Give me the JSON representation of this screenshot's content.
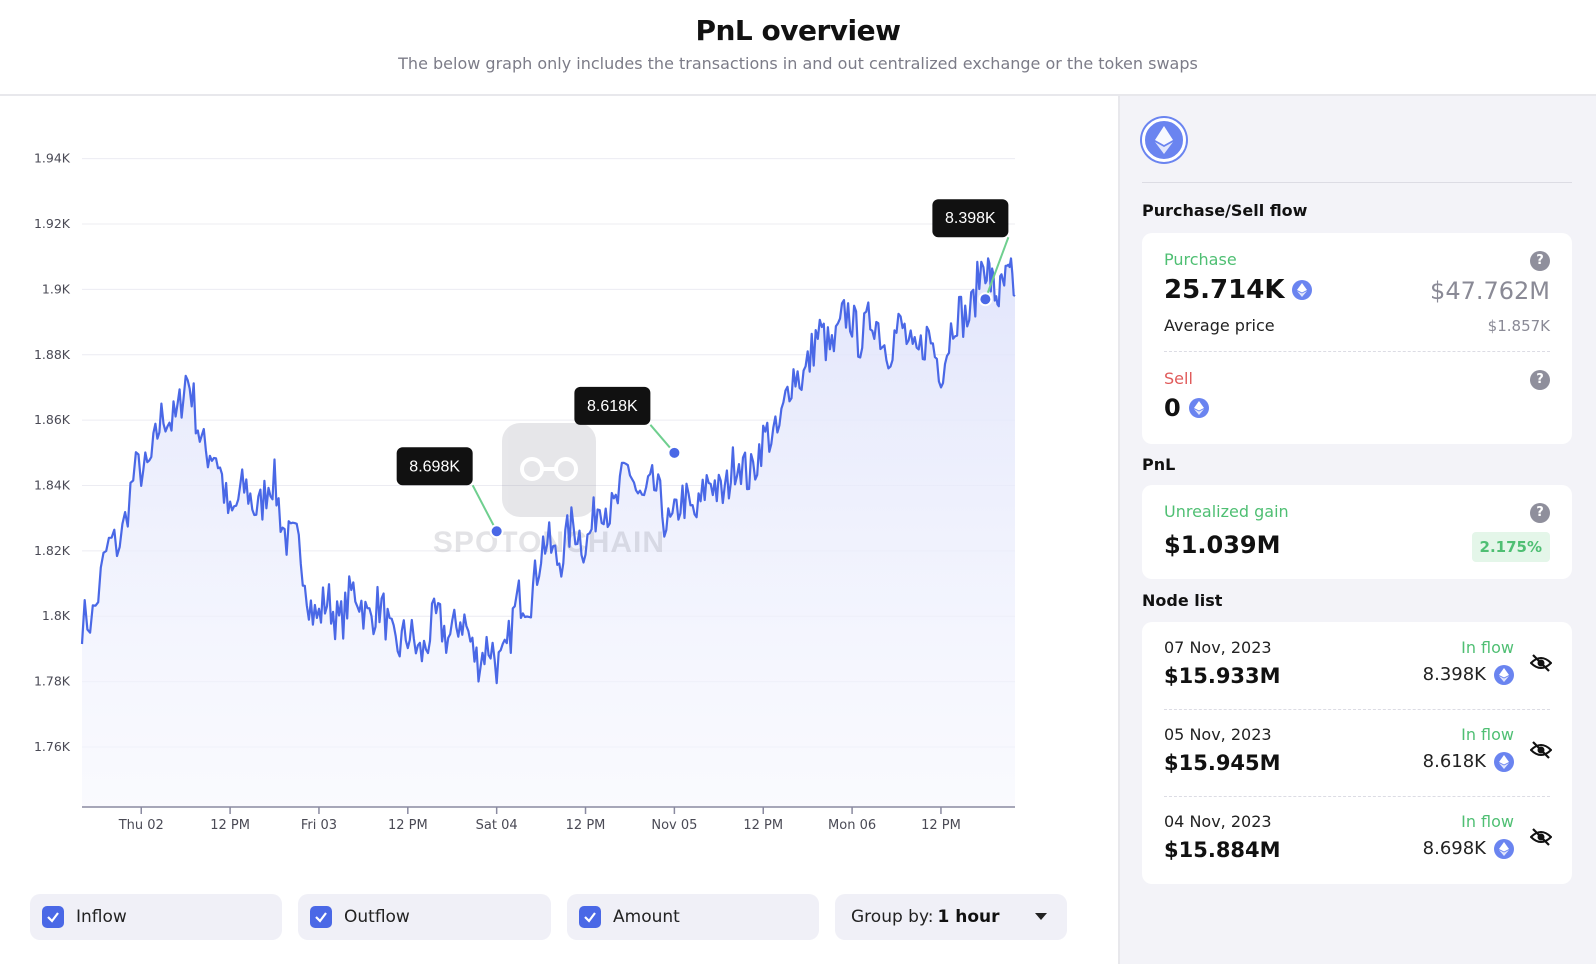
{
  "header": {
    "title": "PnL overview",
    "subtitle": "The below graph only includes the transactions in and out centralized exchange or the token swaps"
  },
  "colors": {
    "accent": "#4a68e6",
    "line": "#4a68e6",
    "area": "#eef0fd",
    "green": "#4fbf73",
    "red": "#e05b5b"
  },
  "watermark": "SPOTONCHAIN",
  "chart_data": {
    "type": "area",
    "y_ticks": [
      "1.94K",
      "1.92K",
      "1.9K",
      "1.88K",
      "1.86K",
      "1.84K",
      "1.82K",
      "1.8K",
      "1.78K",
      "1.76K"
    ],
    "x_ticks": [
      "Thu 02",
      "12 PM",
      "Fri 03",
      "12 PM",
      "Sat 04",
      "12 PM",
      "Nov 05",
      "12 PM",
      "Mon 06",
      "12 PM"
    ],
    "ylim": [
      1745,
      1950
    ],
    "grid": true,
    "series": [
      {
        "x": [
          "Nov 01 16:00",
          "Nov 02 00:00",
          "Nov 02 06:00",
          "Nov 02 12:00",
          "Nov 02 18:00",
          "Nov 03 00:00",
          "Nov 03 06:00",
          "Nov 03 12:00",
          "Nov 03 18:00",
          "Nov 04 00:00",
          "Nov 04 06:00",
          "Nov 04 12:00",
          "Nov 04 18:00",
          "Nov 05 00:00",
          "Nov 05 06:00",
          "Nov 05 12:00",
          "Nov 05 18:00",
          "Nov 06 00:00",
          "Nov 06 06:00",
          "Nov 06 12:00",
          "Nov 06 18:00",
          "Nov 06 22:00"
        ],
        "values": [
          1795,
          1845,
          1870,
          1834,
          1838,
          1800,
          1805,
          1790,
          1798,
          1785,
          1818,
          1826,
          1842,
          1830,
          1840,
          1850,
          1880,
          1890,
          1885,
          1880,
          1905,
          1898
        ]
      }
    ],
    "markers": [
      {
        "x": "Nov 04 00:00",
        "y": 1826,
        "label": "8.698K"
      },
      {
        "x": "Nov 05 00:00",
        "y": 1850,
        "label": "8.618K"
      },
      {
        "x": "Nov 06 18:00",
        "y": 1897,
        "label": "8.398K"
      }
    ]
  },
  "controls": {
    "inflow": "Inflow",
    "outflow": "Outflow",
    "amount": "Amount",
    "group_by_label": "Group by:",
    "group_by_value": "1 hour"
  },
  "side": {
    "token_icon": "ethereum-icon",
    "purchase_sell_title": "Purchase/Sell flow",
    "purchase": {
      "label": "Purchase",
      "amount": "25.714K",
      "usd": "$47.762M",
      "avg_label": "Average price",
      "avg_value": "$1.857K"
    },
    "sell": {
      "label": "Sell",
      "amount": "0"
    },
    "pnl_title": "PnL",
    "unrealized": {
      "label": "Unrealized gain",
      "value": "$1.039M",
      "pct": "2.175%"
    },
    "node_list_title": "Node list",
    "nodes": [
      {
        "date": "07 Nov, 2023",
        "usd": "$15.933M",
        "flow": "In flow",
        "amount": "8.398K"
      },
      {
        "date": "05 Nov, 2023",
        "usd": "$15.945M",
        "flow": "In flow",
        "amount": "8.618K"
      },
      {
        "date": "04 Nov, 2023",
        "usd": "$15.884M",
        "flow": "In flow",
        "amount": "8.698K"
      }
    ]
  }
}
